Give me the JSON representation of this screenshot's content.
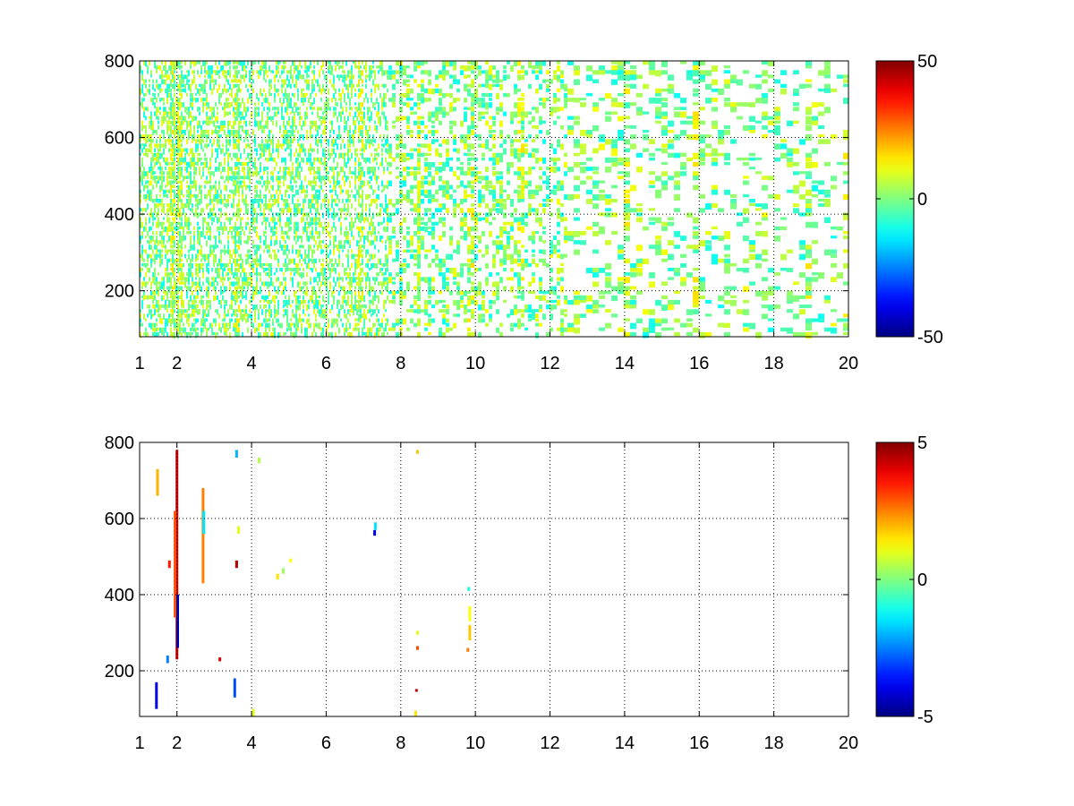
{
  "figure": {
    "background": "#ffffff"
  },
  "chart_data": [
    {
      "type": "heatmap",
      "colormap": "jet",
      "grid": true,
      "grid_style": "dotted",
      "empty_cells": "white",
      "xlim": [
        1,
        20
      ],
      "ylim": [
        80,
        800
      ],
      "x_ticks": [
        1,
        2,
        4,
        6,
        8,
        10,
        12,
        14,
        16,
        18,
        20
      ],
      "x_tick_labels": [
        "1",
        "2",
        "4",
        "6",
        "8",
        "10",
        "12",
        "14",
        "16",
        "18",
        "20"
      ],
      "y_ticks": [
        200,
        400,
        600,
        800
      ],
      "y_tick_labels": [
        "200",
        "400",
        "600",
        "800"
      ],
      "colorbar": {
        "range": [
          -50,
          50
        ],
        "ticks": [
          50,
          0,
          -50
        ],
        "tick_labels": [
          "50",
          "0",
          "-50"
        ],
        "placement": "right"
      },
      "pattern": {
        "density_low_x": 0.55,
        "density_high_x": 0.22,
        "value_spread": 12,
        "strong_columns": [
          1.85,
          2.05,
          3.6,
          6.9,
          8.45,
          9.8,
          11.2,
          13.9,
          15.8,
          17.2,
          18.9,
          19.9
        ]
      }
    },
    {
      "type": "heatmap",
      "colormap": "jet",
      "grid": true,
      "grid_style": "dotted",
      "empty_cells": "white",
      "xlim": [
        1,
        20
      ],
      "ylim": [
        80,
        800
      ],
      "x_ticks": [
        1,
        2,
        4,
        6,
        8,
        10,
        12,
        14,
        16,
        18,
        20
      ],
      "x_tick_labels": [
        "1",
        "2",
        "4",
        "6",
        "8",
        "10",
        "12",
        "14",
        "16",
        "18",
        "20"
      ],
      "y_ticks": [
        200,
        400,
        600,
        800
      ],
      "y_tick_labels": [
        "200",
        "400",
        "600",
        "800"
      ],
      "colorbar": {
        "range": [
          -5,
          5
        ],
        "ticks": [
          5,
          0,
          -5
        ],
        "tick_labels": [
          "5",
          "0",
          "-5"
        ],
        "placement": "right"
      },
      "segments": [
        {
          "x": 2.0,
          "y0": 230,
          "y1": 780,
          "v": 4.2
        },
        {
          "x": 1.95,
          "y0": 340,
          "y1": 620,
          "v": 3.0
        },
        {
          "x": 2.02,
          "y0": 260,
          "y1": 400,
          "v": -4.5
        },
        {
          "x": 2.7,
          "y0": 430,
          "y1": 680,
          "v": 2.5
        },
        {
          "x": 2.72,
          "y0": 560,
          "y1": 620,
          "v": -1.5
        },
        {
          "x": 1.45,
          "y0": 100,
          "y1": 170,
          "v": -4.0
        },
        {
          "x": 1.48,
          "y0": 660,
          "y1": 730,
          "v": 2.0
        },
        {
          "x": 1.75,
          "y0": 220,
          "y1": 240,
          "v": -2.5
        },
        {
          "x": 1.8,
          "y0": 470,
          "y1": 490,
          "v": 3.5
        },
        {
          "x": 3.15,
          "y0": 225,
          "y1": 235,
          "v": 4.0
        },
        {
          "x": 3.55,
          "y0": 130,
          "y1": 180,
          "v": -3.0
        },
        {
          "x": 3.6,
          "y0": 470,
          "y1": 490,
          "v": 4.5
        },
        {
          "x": 3.65,
          "y0": 560,
          "y1": 580,
          "v": 1.0
        },
        {
          "x": 3.6,
          "y0": 760,
          "y1": 780,
          "v": -2.0
        },
        {
          "x": 4.05,
          "y0": 80,
          "y1": 100,
          "v": 1.0
        },
        {
          "x": 4.2,
          "y0": 745,
          "y1": 760,
          "v": 0.5
        },
        {
          "x": 4.7,
          "y0": 440,
          "y1": 455,
          "v": 1.5
        },
        {
          "x": 4.85,
          "y0": 455,
          "y1": 470,
          "v": 0.3
        },
        {
          "x": 5.05,
          "y0": 485,
          "y1": 495,
          "v": 1.2
        },
        {
          "x": 7.3,
          "y0": 555,
          "y1": 570,
          "v": -4.0
        },
        {
          "x": 7.32,
          "y0": 570,
          "y1": 590,
          "v": -1.5
        },
        {
          "x": 8.4,
          "y0": 80,
          "y1": 95,
          "v": 1.5
        },
        {
          "x": 8.42,
          "y0": 145,
          "y1": 152,
          "v": 4.5
        },
        {
          "x": 8.45,
          "y0": 255,
          "y1": 265,
          "v": 3.0
        },
        {
          "x": 8.45,
          "y0": 295,
          "y1": 305,
          "v": 1.0
        },
        {
          "x": 8.45,
          "y0": 770,
          "y1": 780,
          "v": 1.8
        },
        {
          "x": 9.8,
          "y0": 250,
          "y1": 260,
          "v": 2.5
        },
        {
          "x": 9.85,
          "y0": 280,
          "y1": 320,
          "v": 1.8
        },
        {
          "x": 9.85,
          "y0": 330,
          "y1": 370,
          "v": 1.2
        },
        {
          "x": 9.82,
          "y0": 410,
          "y1": 420,
          "v": -1.0
        }
      ]
    }
  ]
}
